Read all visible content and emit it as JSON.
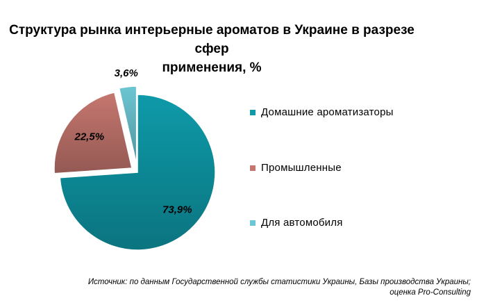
{
  "title": {
    "line1": "Структура рынка интерьерные ароматов в Украине в разрезе сфер",
    "line2": "применения, %"
  },
  "chart_data": {
    "type": "pie",
    "title": "Структура рынка интерьерные ароматов в Украине в разрезе сфер применения, %",
    "slices": [
      {
        "name": "Домашние ароматизаторы",
        "value": 73.9,
        "label": "73,9%",
        "color": "#0e9aa9"
      },
      {
        "name": "Промышленные",
        "value": 22.5,
        "label": "22,5%",
        "color": "#c5776f"
      },
      {
        "name": "Для автомобиля",
        "value": 3.6,
        "label": "3,6%",
        "color": "#6cc6d3"
      }
    ],
    "legend_placement": "right",
    "data_labels": "bold italic percent"
  },
  "source": {
    "line1": "Источник: по данным Государственной службы статистики Украины, Базы производства Украины;",
    "line2": "оценка Pro-Consulting"
  }
}
